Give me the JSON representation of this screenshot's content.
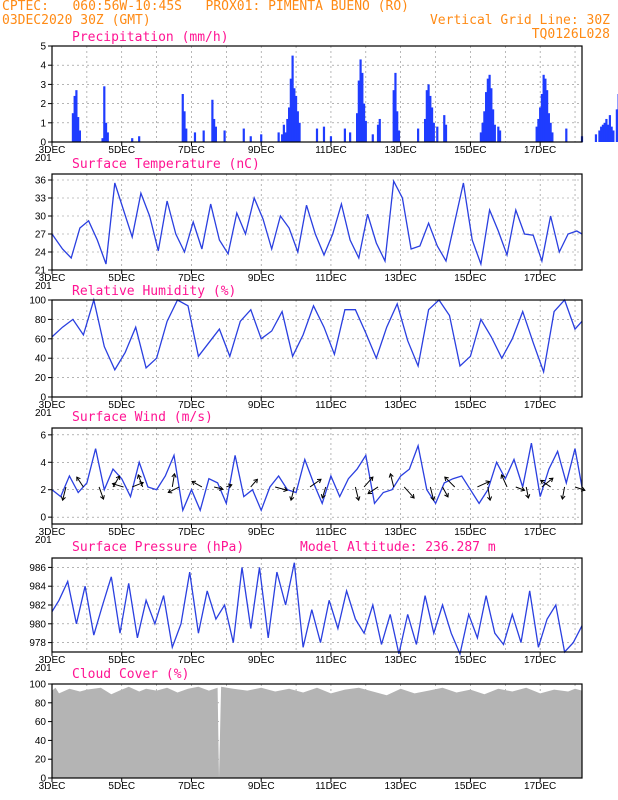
{
  "header": {
    "line1_left": "CPTEC:   060:56W-10:45S   PROX01: PIMENTA BUENO (RO)",
    "line2_left": "03DEC2020 30Z (GMT)",
    "line2_right": "Vertical Grid Line: 30Z",
    "line3_right": "TQ0126L028"
  },
  "x_axis": {
    "ticks": [
      "3DEC",
      "5DEC",
      "7DEC",
      "9DEC",
      "11DEC",
      "13DEC",
      "15DEC",
      "17DEC"
    ],
    "year_fragment": "201",
    "range_days": [
      0,
      15.2
    ]
  },
  "chart_data": [
    {
      "id": "precip",
      "type": "bar",
      "title": "Precipitation (mm/h)",
      "ylim": [
        0,
        5
      ],
      "yticks": [
        0,
        1,
        2,
        3,
        4,
        5
      ],
      "color": "#1f3cff",
      "events": [
        {
          "t": 0.6,
          "v": 1.5
        },
        {
          "t": 0.65,
          "v": 2.4
        },
        {
          "t": 0.7,
          "v": 2.7
        },
        {
          "t": 0.75,
          "v": 1.3
        },
        {
          "t": 0.8,
          "v": 0.6
        },
        {
          "t": 1.45,
          "v": 0.2
        },
        {
          "t": 1.5,
          "v": 2.9
        },
        {
          "t": 1.55,
          "v": 1.0
        },
        {
          "t": 1.6,
          "v": 0.5
        },
        {
          "t": 2.3,
          "v": 0.2
        },
        {
          "t": 2.5,
          "v": 0.3
        },
        {
          "t": 3.75,
          "v": 2.5
        },
        {
          "t": 3.8,
          "v": 1.6
        },
        {
          "t": 3.85,
          "v": 0.7
        },
        {
          "t": 4.1,
          "v": 0.5
        },
        {
          "t": 4.35,
          "v": 0.6
        },
        {
          "t": 4.6,
          "v": 2.2
        },
        {
          "t": 4.65,
          "v": 1.2
        },
        {
          "t": 4.7,
          "v": 0.8
        },
        {
          "t": 4.95,
          "v": 0.6
        },
        {
          "t": 5.5,
          "v": 0.7
        },
        {
          "t": 5.7,
          "v": 0.3
        },
        {
          "t": 6.0,
          "v": 0.4
        },
        {
          "t": 6.5,
          "v": 0.5
        },
        {
          "t": 6.6,
          "v": 0.4
        },
        {
          "t": 6.65,
          "v": 0.9
        },
        {
          "t": 6.7,
          "v": 0.5
        },
        {
          "t": 6.75,
          "v": 1.2
        },
        {
          "t": 6.8,
          "v": 1.8
        },
        {
          "t": 6.85,
          "v": 3.3
        },
        {
          "t": 6.9,
          "v": 4.5
        },
        {
          "t": 6.95,
          "v": 2.8
        },
        {
          "t": 7.0,
          "v": 2.4
        },
        {
          "t": 7.05,
          "v": 1.6
        },
        {
          "t": 7.1,
          "v": 1.0
        },
        {
          "t": 7.6,
          "v": 0.7
        },
        {
          "t": 7.8,
          "v": 0.8
        },
        {
          "t": 8.0,
          "v": 0.3
        },
        {
          "t": 8.4,
          "v": 0.7
        },
        {
          "t": 8.55,
          "v": 0.5
        },
        {
          "t": 8.75,
          "v": 1.5
        },
        {
          "t": 8.8,
          "v": 3.2
        },
        {
          "t": 8.85,
          "v": 4.3
        },
        {
          "t": 8.9,
          "v": 3.6
        },
        {
          "t": 8.95,
          "v": 2.0
        },
        {
          "t": 9.0,
          "v": 1.1
        },
        {
          "t": 9.2,
          "v": 0.4
        },
        {
          "t": 9.35,
          "v": 0.9
        },
        {
          "t": 9.4,
          "v": 1.2
        },
        {
          "t": 9.8,
          "v": 2.7
        },
        {
          "t": 9.85,
          "v": 3.6
        },
        {
          "t": 9.9,
          "v": 1.6
        },
        {
          "t": 9.95,
          "v": 0.6
        },
        {
          "t": 10.5,
          "v": 0.7
        },
        {
          "t": 10.7,
          "v": 1.2
        },
        {
          "t": 10.75,
          "v": 2.7
        },
        {
          "t": 10.8,
          "v": 3.0
        },
        {
          "t": 10.85,
          "v": 2.4
        },
        {
          "t": 10.9,
          "v": 1.8
        },
        {
          "t": 10.95,
          "v": 1.0
        },
        {
          "t": 11.05,
          "v": 0.8
        },
        {
          "t": 11.25,
          "v": 1.4
        },
        {
          "t": 11.3,
          "v": 0.9
        },
        {
          "t": 12.3,
          "v": 0.5
        },
        {
          "t": 12.35,
          "v": 1.0
        },
        {
          "t": 12.4,
          "v": 1.6
        },
        {
          "t": 12.45,
          "v": 2.6
        },
        {
          "t": 12.5,
          "v": 3.3
        },
        {
          "t": 12.55,
          "v": 3.5
        },
        {
          "t": 12.6,
          "v": 2.8
        },
        {
          "t": 12.65,
          "v": 1.7
        },
        {
          "t": 12.7,
          "v": 0.9
        },
        {
          "t": 12.8,
          "v": 0.8
        },
        {
          "t": 12.85,
          "v": 0.6
        },
        {
          "t": 13.9,
          "v": 0.8
        },
        {
          "t": 13.95,
          "v": 1.2
        },
        {
          "t": 14.0,
          "v": 1.8
        },
        {
          "t": 14.05,
          "v": 2.5
        },
        {
          "t": 14.1,
          "v": 3.5
        },
        {
          "t": 14.15,
          "v": 3.3
        },
        {
          "t": 14.2,
          "v": 2.7
        },
        {
          "t": 14.25,
          "v": 1.5
        },
        {
          "t": 14.3,
          "v": 1.0
        },
        {
          "t": 14.35,
          "v": 0.5
        },
        {
          "t": 14.75,
          "v": 0.7
        },
        {
          "t": 15.2,
          "v": 0.3
        },
        {
          "t": 15.6,
          "v": 0.4
        },
        {
          "t": 15.7,
          "v": 0.6
        },
        {
          "t": 15.75,
          "v": 0.8
        },
        {
          "t": 15.8,
          "v": 0.9
        },
        {
          "t": 15.85,
          "v": 1.0
        },
        {
          "t": 15.9,
          "v": 1.2
        },
        {
          "t": 15.95,
          "v": 0.9
        },
        {
          "t": 16.0,
          "v": 1.4
        },
        {
          "t": 16.05,
          "v": 0.8
        },
        {
          "t": 16.1,
          "v": 0.6
        },
        {
          "t": 16.2,
          "v": 1.7
        },
        {
          "t": 16.25,
          "v": 2.5
        },
        {
          "t": 16.3,
          "v": 4.0
        },
        {
          "t": 16.35,
          "v": 3.2
        },
        {
          "t": 16.4,
          "v": 1.4
        }
      ]
    },
    {
      "id": "temp",
      "type": "line",
      "title": "Surface Temperature (nC)",
      "ylim": [
        21,
        37
      ],
      "yticks": [
        21,
        24,
        27,
        30,
        33,
        36
      ],
      "color": "#2a3fe0",
      "x": [
        0,
        0.3,
        0.55,
        0.8,
        1.05,
        1.3,
        1.55,
        1.8,
        2.05,
        2.3,
        2.55,
        2.8,
        3.05,
        3.3,
        3.55,
        3.8,
        4.05,
        4.3,
        4.55,
        4.8,
        5.05,
        5.3,
        5.55,
        5.8,
        6.05,
        6.3,
        6.55,
        6.8,
        7.05,
        7.3,
        7.55,
        7.8,
        8.05,
        8.3,
        8.55,
        8.8,
        9.05,
        9.3,
        9.55,
        9.8,
        10.05,
        10.3,
        10.55,
        10.8,
        11.05,
        11.3,
        11.55,
        11.8,
        12.05,
        12.3,
        12.55,
        12.8,
        13.05,
        13.3,
        13.55,
        13.8,
        14.05,
        14.3,
        14.55,
        14.8,
        15.05,
        15.2
      ],
      "values": [
        27,
        24.5,
        23,
        28,
        29.2,
        26,
        22,
        35.5,
        31,
        26.5,
        33.8,
        30,
        24.2,
        32.5,
        27,
        24,
        29,
        24.5,
        32,
        26,
        23.7,
        30.5,
        27,
        33,
        29.5,
        24.5,
        30,
        28,
        24,
        31.8,
        27,
        23.5,
        27,
        32,
        26,
        23,
        30.3,
        25.5,
        22.5,
        35.8,
        33,
        24.5,
        25,
        28.8,
        25,
        22.5,
        29,
        35.5,
        26,
        22,
        31,
        27.5,
        23.5,
        31,
        27,
        26.8,
        22.5,
        30,
        24,
        27,
        27.5,
        27
      ]
    },
    {
      "id": "rh",
      "type": "line",
      "title": "Relative Humidity (%)",
      "ylim": [
        0,
        100
      ],
      "yticks": [
        0,
        20,
        40,
        60,
        80,
        100
      ],
      "color": "#2a3fe0",
      "x": [
        0,
        0.3,
        0.6,
        0.9,
        1.2,
        1.5,
        1.8,
        2.1,
        2.4,
        2.7,
        3.0,
        3.3,
        3.6,
        3.9,
        4.2,
        4.5,
        4.8,
        5.1,
        5.4,
        5.7,
        6.0,
        6.3,
        6.6,
        6.9,
        7.2,
        7.5,
        7.8,
        8.1,
        8.4,
        8.7,
        9.0,
        9.3,
        9.6,
        9.9,
        10.2,
        10.5,
        10.8,
        11.1,
        11.4,
        11.7,
        12.0,
        12.3,
        12.6,
        12.9,
        13.2,
        13.5,
        13.8,
        14.1,
        14.4,
        14.7,
        15.0,
        15.2
      ],
      "values": [
        62,
        72,
        80,
        64,
        100,
        52,
        28,
        46,
        72,
        30,
        40,
        78,
        100,
        94,
        42,
        56,
        70,
        42,
        78,
        90,
        60,
        68,
        88,
        42,
        64,
        94,
        72,
        44,
        90,
        90,
        66,
        40,
        72,
        96,
        58,
        32,
        90,
        100,
        84,
        32,
        42,
        80,
        62,
        40,
        60,
        88,
        56,
        26,
        88,
        100,
        70,
        78
      ]
    },
    {
      "id": "wind",
      "type": "line",
      "title": "Surface Wind (m/s)",
      "ylim": [
        -0.5,
        6.5
      ],
      "yticks": [
        0,
        2,
        4,
        6
      ],
      "color": "#2a3fe0",
      "x": [
        0,
        0.25,
        0.5,
        0.75,
        1.0,
        1.25,
        1.5,
        1.75,
        2.0,
        2.25,
        2.5,
        2.75,
        3.0,
        3.25,
        3.5,
        3.75,
        4.0,
        4.25,
        4.5,
        4.75,
        5.0,
        5.25,
        5.5,
        5.75,
        6.0,
        6.25,
        6.5,
        6.75,
        7.0,
        7.25,
        7.5,
        7.75,
        8.0,
        8.25,
        8.5,
        8.75,
        9.0,
        9.25,
        9.5,
        9.75,
        10.0,
        10.25,
        10.5,
        10.75,
        11.0,
        11.25,
        11.5,
        11.75,
        12.0,
        12.25,
        12.5,
        12.75,
        13.0,
        13.25,
        13.5,
        13.75,
        14.0,
        14.25,
        14.5,
        14.75,
        15.0,
        15.2
      ],
      "values": [
        2,
        1.5,
        3,
        1.8,
        2.5,
        5,
        2,
        3.5,
        2.8,
        1.5,
        4,
        2.2,
        2,
        3,
        4.5,
        0.5,
        2,
        0.5,
        2.8,
        2.5,
        1,
        4.5,
        1.5,
        2,
        0.5,
        2.2,
        3,
        2,
        1.8,
        4.2,
        2.5,
        1,
        3,
        1.5,
        2.8,
        3.5,
        4.5,
        1,
        1.8,
        2,
        3,
        3.5,
        5.2,
        2,
        1,
        2.5,
        2.8,
        3,
        2,
        1,
        2,
        4,
        2.8,
        4.2,
        2.2,
        5.4,
        1.5,
        3.5,
        4.8,
        2.5,
        5,
        2.2
      ]
    },
    {
      "id": "pres",
      "type": "line",
      "title": "Surface Pressure (hPa)",
      "annotation": "Model Altitude: 236.287 m",
      "ylim": [
        977,
        987
      ],
      "yticks": [
        978,
        980,
        982,
        984,
        986
      ],
      "color": "#2a3fe0",
      "x": [
        0,
        0.2,
        0.45,
        0.7,
        0.95,
        1.2,
        1.45,
        1.7,
        1.95,
        2.2,
        2.45,
        2.7,
        2.95,
        3.2,
        3.45,
        3.7,
        3.95,
        4.2,
        4.45,
        4.7,
        4.95,
        5.2,
        5.45,
        5.7,
        5.95,
        6.2,
        6.45,
        6.7,
        6.95,
        7.2,
        7.45,
        7.7,
        7.95,
        8.2,
        8.45,
        8.7,
        8.95,
        9.2,
        9.45,
        9.7,
        9.95,
        10.2,
        10.45,
        10.7,
        10.95,
        11.2,
        11.45,
        11.7,
        11.95,
        12.2,
        12.45,
        12.7,
        12.95,
        13.2,
        13.45,
        13.7,
        13.95,
        14.2,
        14.45,
        14.7,
        14.95,
        15.2
      ],
      "values": [
        981.3,
        982.5,
        984.5,
        980,
        984,
        978.8,
        982,
        985,
        979,
        984.3,
        978.5,
        982.5,
        980,
        983,
        977.5,
        980,
        985.5,
        979,
        983.5,
        980.5,
        982,
        978,
        986,
        979.5,
        986,
        978.5,
        985.5,
        982,
        986.5,
        977.5,
        981.5,
        978,
        982.5,
        979.5,
        983.5,
        980.5,
        979,
        982,
        977.8,
        981,
        976.8,
        981,
        977.8,
        983,
        979,
        982,
        979,
        976.8,
        981,
        978.5,
        983,
        979,
        977.8,
        981,
        978,
        983.5,
        977.5,
        980.5,
        982,
        977,
        978,
        979.8
      ]
    },
    {
      "id": "cloud",
      "type": "area",
      "title": "Cloud Cover (%)",
      "ylim": [
        0,
        100
      ],
      "yticks": [
        0,
        20,
        40,
        60,
        80,
        100
      ],
      "color": "#b4b4b4",
      "x": [
        0,
        0.1,
        0.2,
        0.5,
        0.8,
        1.0,
        1.4,
        1.7,
        2.0,
        2.2,
        2.5,
        2.7,
        3.0,
        3.3,
        3.6,
        3.9,
        4.2,
        4.5,
        4.75,
        4.79,
        4.85,
        5.2,
        5.6,
        6.0,
        6.4,
        6.8,
        7.2,
        7.6,
        8.0,
        8.4,
        8.8,
        9.2,
        9.6,
        10.0,
        10.4,
        10.8,
        11.2,
        11.6,
        12.0,
        12.4,
        12.8,
        13.2,
        13.6,
        14.0,
        14.4,
        14.8,
        15.0,
        15.2
      ],
      "values": [
        93,
        96,
        90,
        95,
        92,
        94,
        96,
        89,
        94,
        97,
        92,
        95,
        93,
        96,
        91,
        95,
        97,
        93,
        96,
        0,
        97,
        95,
        93,
        96,
        92,
        95,
        91,
        96,
        90,
        94,
        96,
        92,
        88,
        95,
        90,
        93,
        96,
        91,
        94,
        89,
        95,
        92,
        96,
        90,
        94,
        92,
        95,
        93
      ]
    }
  ],
  "wind_vectors": [
    {
      "t": 0.4,
      "u": -0.3,
      "v": -1.2
    },
    {
      "t": 0.9,
      "u": -0.6,
      "v": 0.9
    },
    {
      "t": 1.35,
      "u": 0.4,
      "v": -1.1
    },
    {
      "t": 1.75,
      "u": 0.6,
      "v": 1.0
    },
    {
      "t": 2.05,
      "u": -1.0,
      "v": 0.3
    },
    {
      "t": 2.3,
      "u": 1.0,
      "v": 0.4
    },
    {
      "t": 2.6,
      "u": -0.4,
      "v": 1.1
    },
    {
      "t": 3.45,
      "u": 0.2,
      "v": 1.2
    },
    {
      "t": 3.65,
      "u": -1.0,
      "v": -0.5
    },
    {
      "t": 4.3,
      "u": -0.9,
      "v": 0.5
    },
    {
      "t": 4.65,
      "u": 0.8,
      "v": -0.2
    },
    {
      "t": 5.0,
      "u": 0.5,
      "v": 0.2
    },
    {
      "t": 5.7,
      "u": 0.6,
      "v": 0.7
    },
    {
      "t": 6.4,
      "u": 1.1,
      "v": -0.3
    },
    {
      "t": 6.95,
      "u": -0.3,
      "v": -1.2
    },
    {
      "t": 7.4,
      "u": 1.0,
      "v": 0.7
    },
    {
      "t": 7.85,
      "u": -0.3,
      "v": -1.0
    },
    {
      "t": 8.7,
      "u": 0.3,
      "v": -1.2
    },
    {
      "t": 8.95,
      "u": 0.8,
      "v": 0.9
    },
    {
      "t": 9.35,
      "u": -0.9,
      "v": -0.6
    },
    {
      "t": 9.8,
      "u": -0.3,
      "v": 1.2
    },
    {
      "t": 10.1,
      "u": 0.9,
      "v": -1.0
    },
    {
      "t": 10.85,
      "u": 0.3,
      "v": -1.2
    },
    {
      "t": 11.2,
      "u": 0.5,
      "v": -0.9
    },
    {
      "t": 11.55,
      "u": -0.9,
      "v": 0.9
    },
    {
      "t": 12.2,
      "u": 1.1,
      "v": 0.5
    },
    {
      "t": 12.5,
      "u": 0.2,
      "v": -1.2
    },
    {
      "t": 13.05,
      "u": -0.5,
      "v": 1.1
    },
    {
      "t": 13.3,
      "u": 0.8,
      "v": -0.3
    },
    {
      "t": 13.6,
      "u": 0.2,
      "v": -1.0
    },
    {
      "t": 14.05,
      "u": 1.0,
      "v": 0.8
    },
    {
      "t": 14.3,
      "u": -0.9,
      "v": 0.6
    },
    {
      "t": 14.7,
      "u": -0.2,
      "v": -1.1
    },
    {
      "t": 15.0,
      "u": 0.9,
      "v": -0.3
    }
  ]
}
